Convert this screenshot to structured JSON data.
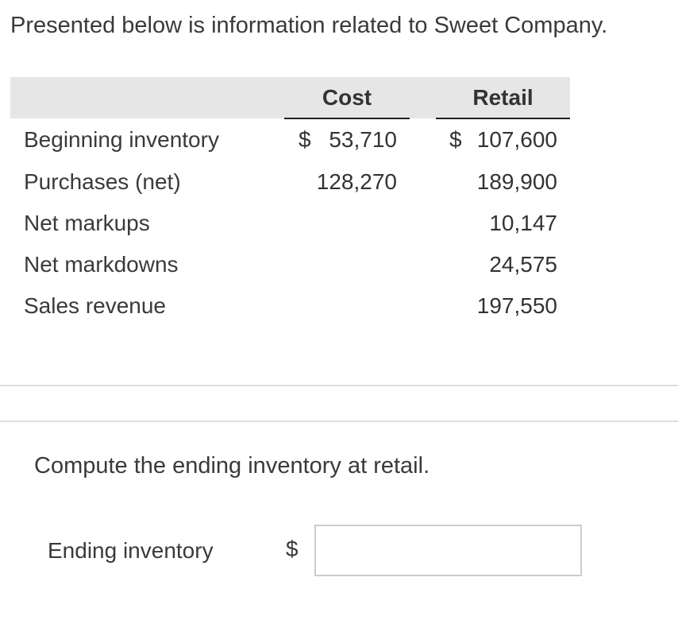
{
  "intro": "Presented below is information related to Sweet Company.",
  "table": {
    "headers": {
      "cost": "Cost",
      "retail": "Retail"
    },
    "rows": [
      {
        "label": "Beginning inventory",
        "cost_symbol": "$",
        "cost": "53,710",
        "retail_symbol": "$",
        "retail": "107,600"
      },
      {
        "label": "Purchases (net)",
        "cost_symbol": "",
        "cost": "128,270",
        "retail_symbol": "",
        "retail": "189,900"
      },
      {
        "label": "Net markups",
        "cost_symbol": "",
        "cost": "",
        "retail_symbol": "",
        "retail": "10,147"
      },
      {
        "label": "Net markdowns",
        "cost_symbol": "",
        "cost": "",
        "retail_symbol": "",
        "retail": "24,575"
      },
      {
        "label": "Sales revenue",
        "cost_symbol": "",
        "cost": "",
        "retail_symbol": "",
        "retail": "197,550"
      }
    ]
  },
  "question": "Compute the ending inventory at retail.",
  "answer": {
    "label": "Ending inventory",
    "currency_symbol": "$",
    "value": ""
  }
}
